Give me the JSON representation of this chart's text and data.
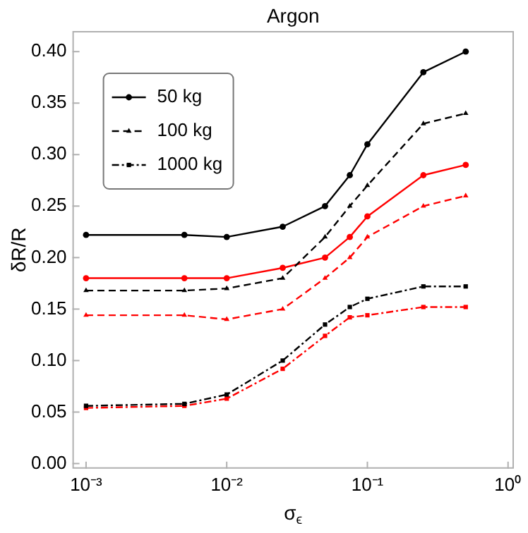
{
  "chart_data": {
    "type": "line",
    "title": "Argon",
    "xlabel": "σ$_{ϵ}$",
    "ylabel": "δR/R",
    "log": "x",
    "x": [
      0.001,
      0.005,
      0.01,
      0.025,
      0.05,
      0.075,
      0.1,
      0.25,
      0.5
    ],
    "series": [
      {
        "name": "50 kg",
        "color": "#000000",
        "marker": "circle",
        "line_style": "solid",
        "values": [
          0.222,
          0.222,
          0.22,
          0.23,
          0.25,
          0.28,
          0.31,
          0.38,
          0.4
        ]
      },
      {
        "name": "100 kg",
        "color": "#000000",
        "marker": "triangle",
        "line_style": "dashed",
        "values": [
          0.168,
          0.168,
          0.17,
          0.18,
          0.22,
          0.25,
          0.27,
          0.33,
          0.34
        ]
      },
      {
        "name": "1000 kg",
        "color": "#000000",
        "marker": "square",
        "line_style": "dotted",
        "values": [
          0.056,
          0.058,
          0.067,
          0.1,
          0.135,
          0.152,
          0.16,
          0.172,
          0.172
        ]
      },
      {
        "color": "#ff0000",
        "marker": "circle",
        "line_style": "solid",
        "values": [
          0.18,
          0.18,
          0.18,
          0.19,
          0.2,
          0.22,
          0.24,
          0.28,
          0.29
        ]
      },
      {
        "color": "#ff0000",
        "marker": "triangle",
        "line_style": "dashed",
        "values": [
          0.144,
          0.144,
          0.14,
          0.15,
          0.18,
          0.2,
          0.22,
          0.25,
          0.26
        ]
      },
      {
        "color": "#ff0000",
        "marker": "square",
        "line_style": "dotted",
        "values": [
          0.054,
          0.056,
          0.063,
          0.092,
          0.124,
          0.142,
          0.144,
          0.152,
          0.152
        ]
      }
    ],
    "xlim": [
      0.0008,
      1.1
    ],
    "xticks": [
      {
        "value": 0.001,
        "label": "10⁻³"
      },
      {
        "value": 0.01,
        "label": "10⁻²"
      },
      {
        "value": 0.1,
        "label": "10⁻¹"
      },
      {
        "value": 1,
        "label": "10⁰"
      }
    ],
    "ylim": [
      -0.005,
      0.42
    ],
    "yticks": [
      {
        "value": 0,
        "label": "0.00"
      },
      {
        "value": 0.05,
        "label": "0.05"
      },
      {
        "value": 0.1,
        "label": "0.10"
      },
      {
        "value": 0.15,
        "label": "0.15"
      },
      {
        "value": 0.2,
        "label": "0.20"
      },
      {
        "value": 0.25,
        "label": "0.25"
      },
      {
        "value": 0.3,
        "label": "0.30"
      },
      {
        "value": 0.35,
        "label": "0.35"
      },
      {
        "value": 0.4,
        "label": "0.40"
      }
    ],
    "grid": false,
    "legend": "top left"
  }
}
